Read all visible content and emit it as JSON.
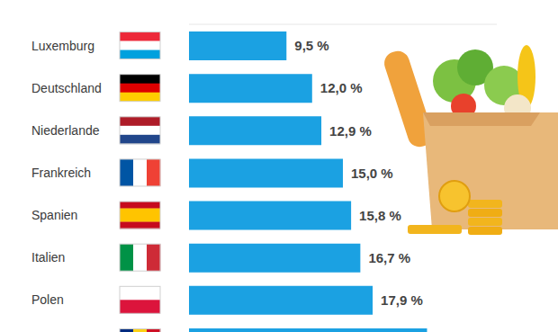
{
  "chart_data": {
    "type": "bar",
    "orientation": "horizontal",
    "categories": [
      "Luxemburg",
      "Deutschland",
      "Niederlande",
      "Frankreich",
      "Spanien",
      "Italien",
      "Polen",
      null
    ],
    "values": [
      9.5,
      12.0,
      12.9,
      15.0,
      15.8,
      16.7,
      17.9,
      23.2
    ],
    "value_labels": [
      "9,5 %",
      "12,0 %",
      "12,9 %",
      "15,0 %",
      "15,8 %",
      "16,7 %",
      "17,9 %",
      null
    ],
    "color": "#1ba1e2",
    "xlim": [
      0,
      30
    ],
    "data_labels": true,
    "tick_labels": "y"
  }
}
